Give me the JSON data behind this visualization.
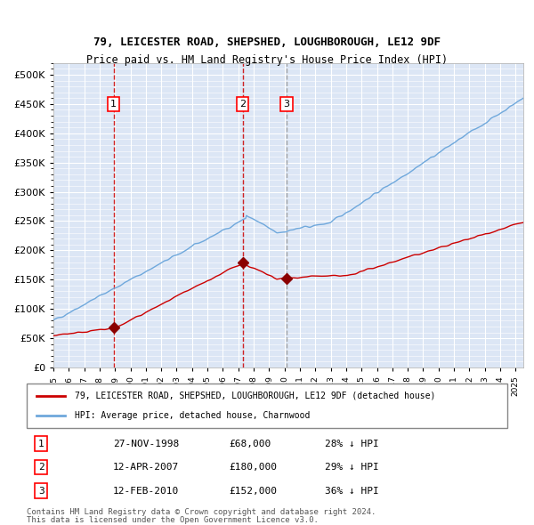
{
  "title1": "79, LEICESTER ROAD, SHEPSHED, LOUGHBOROUGH, LE12 9DF",
  "title2": "Price paid vs. HM Land Registry's House Price Index (HPI)",
  "ylabel": "",
  "background_color": "#dce6f5",
  "plot_bg_color": "#dce6f5",
  "legend_line1": "79, LEICESTER ROAD, SHEPSHED, LOUGHBOROUGH, LE12 9DF (detached house)",
  "legend_line2": "HPI: Average price, detached house, Charnwood",
  "footer1": "Contains HM Land Registry data © Crown copyright and database right 2024.",
  "footer2": "This data is licensed under the Open Government Licence v3.0.",
  "sale_points": [
    {
      "label": "1",
      "date": "27-NOV-1998",
      "price": 68000,
      "pct": "28%",
      "x_year": 1998.9
    },
    {
      "label": "2",
      "date": "12-APR-2007",
      "price": 180000,
      "pct": "29%",
      "x_year": 2007.28
    },
    {
      "label": "3",
      "date": "12-FEB-2010",
      "price": 152000,
      "pct": "36%",
      "x_year": 2010.12
    }
  ],
  "hpi_color": "#6fa8dc",
  "price_color": "#cc0000",
  "sale_marker_color": "#8b0000",
  "vline_colors": [
    "#cc0000",
    "#cc0000",
    "#999999"
  ],
  "ylim": [
    0,
    520000
  ],
  "xlim_start": 1995.0,
  "xlim_end": 2025.5
}
